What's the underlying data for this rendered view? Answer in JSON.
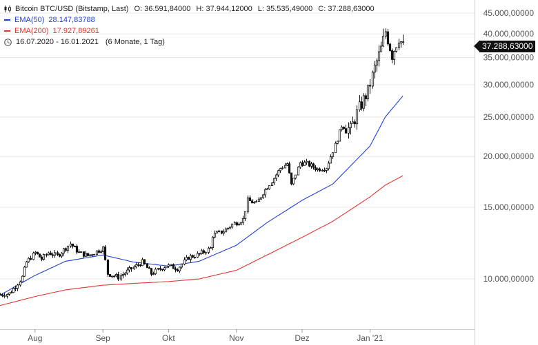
{
  "header": {
    "instrument": "Bitcoin BTC/USD (Bitstamp, Last)",
    "ohlc": {
      "open_label": "O: 36.591,84000",
      "high_label": "H: 37.944,12000",
      "low_label": "L: 35.535,49000",
      "close_label": "C: 37.288,63000"
    },
    "ema50_label": "EMA(50)",
    "ema50_value": "28.147,83788",
    "ema200_label": "EMA(200)",
    "ema200_value": "17.927,89261",
    "range_label": "16.07.2020 - 16.01.2021",
    "period_label": "(6 Monate, 1 Tag)"
  },
  "colors": {
    "candles": "#111111",
    "ema50": "#1f3fd6",
    "ema200": "#e5322d",
    "grid": "#e8e8e8",
    "axis_text": "#555555"
  },
  "last_price_label": "37.288,63000",
  "chart_data": {
    "type": "line",
    "subtype": "candlestick",
    "y_scale": "log",
    "ylim": [
      8000,
      46000
    ],
    "y_ticks": [
      10000,
      15000,
      20000,
      25000,
      30000,
      35000,
      40000,
      45000
    ],
    "y_tick_labels": [
      "10.000,00000",
      "15.000,00000",
      "20.000,00000",
      "25.000,00000",
      "30.000,00000",
      "35.000,00000",
      "40.000,00000",
      "45.000,00000"
    ],
    "x_range": [
      "2020-07-16",
      "2021-01-16"
    ],
    "x_ticks": [
      "2020-08-01",
      "2020-09-01",
      "2020-10-01",
      "2020-11-01",
      "2020-12-01",
      "2021-01-01"
    ],
    "x_tick_labels": [
      "Aug",
      "Sep",
      "Okt",
      "Nov",
      "Dez",
      "Jan '21"
    ],
    "price_points": [
      [
        "2020-07-16",
        9150
      ],
      [
        "2020-07-20",
        9200
      ],
      [
        "2020-07-23",
        9600
      ],
      [
        "2020-07-26",
        10100
      ],
      [
        "2020-07-28",
        11000
      ],
      [
        "2020-08-01",
        11600
      ],
      [
        "2020-08-04",
        11200
      ],
      [
        "2020-08-07",
        11600
      ],
      [
        "2020-08-11",
        11400
      ],
      [
        "2020-08-17",
        12200
      ],
      [
        "2020-08-21",
        11600
      ],
      [
        "2020-08-25",
        11400
      ],
      [
        "2020-09-01",
        11900
      ],
      [
        "2020-09-03",
        10300
      ],
      [
        "2020-09-08",
        10100
      ],
      [
        "2020-09-14",
        10600
      ],
      [
        "2020-09-19",
        11000
      ],
      [
        "2020-09-23",
        10300
      ],
      [
        "2020-09-30",
        10800
      ],
      [
        "2020-10-05",
        10600
      ],
      [
        "2020-10-10",
        11300
      ],
      [
        "2020-10-15",
        11500
      ],
      [
        "2020-10-20",
        11900
      ],
      [
        "2020-10-21",
        12800
      ],
      [
        "2020-10-26",
        13100
      ],
      [
        "2020-10-30",
        13600
      ],
      [
        "2020-11-04",
        14000
      ],
      [
        "2020-11-06",
        15600
      ],
      [
        "2020-11-10",
        15300
      ],
      [
        "2020-11-13",
        16300
      ],
      [
        "2020-11-18",
        17700
      ],
      [
        "2020-11-21",
        18700
      ],
      [
        "2020-11-24",
        19200
      ],
      [
        "2020-11-26",
        17000
      ],
      [
        "2020-11-30",
        19300
      ],
      [
        "2020-12-03",
        19200
      ],
      [
        "2020-12-08",
        18600
      ],
      [
        "2020-12-12",
        18800
      ],
      [
        "2020-12-16",
        21300
      ],
      [
        "2020-12-19",
        23800
      ],
      [
        "2020-12-23",
        23300
      ],
      [
        "2020-12-27",
        26300
      ],
      [
        "2020-12-31",
        28900
      ],
      [
        "2021-01-03",
        33000
      ],
      [
        "2021-01-06",
        36800
      ],
      [
        "2021-01-08",
        40600
      ],
      [
        "2021-01-11",
        35500
      ],
      [
        "2021-01-14",
        39200
      ],
      [
        "2021-01-16",
        37289
      ]
    ],
    "ema50_points": [
      [
        "2020-07-16",
        9120
      ],
      [
        "2020-08-01",
        10200
      ],
      [
        "2020-08-15",
        11050
      ],
      [
        "2020-09-01",
        11450
      ],
      [
        "2020-09-15",
        11000
      ],
      [
        "2020-10-01",
        10750
      ],
      [
        "2020-10-15",
        11050
      ],
      [
        "2020-11-01",
        12100
      ],
      [
        "2020-11-15",
        13750
      ],
      [
        "2020-12-01",
        15600
      ],
      [
        "2020-12-15",
        17100
      ],
      [
        "2021-01-01",
        21200
      ],
      [
        "2021-01-08",
        25000
      ],
      [
        "2021-01-16",
        28148
      ]
    ],
    "ema200_points": [
      [
        "2020-07-16",
        8600
      ],
      [
        "2020-08-01",
        9050
      ],
      [
        "2020-08-15",
        9400
      ],
      [
        "2020-09-01",
        9650
      ],
      [
        "2020-09-15",
        9750
      ],
      [
        "2020-10-01",
        9850
      ],
      [
        "2020-10-15",
        10000
      ],
      [
        "2020-11-01",
        10500
      ],
      [
        "2020-11-15",
        11450
      ],
      [
        "2020-12-01",
        12650
      ],
      [
        "2020-12-15",
        13850
      ],
      [
        "2021-01-01",
        15900
      ],
      [
        "2021-01-08",
        17000
      ],
      [
        "2021-01-16",
        17928
      ]
    ],
    "grid": true
  }
}
